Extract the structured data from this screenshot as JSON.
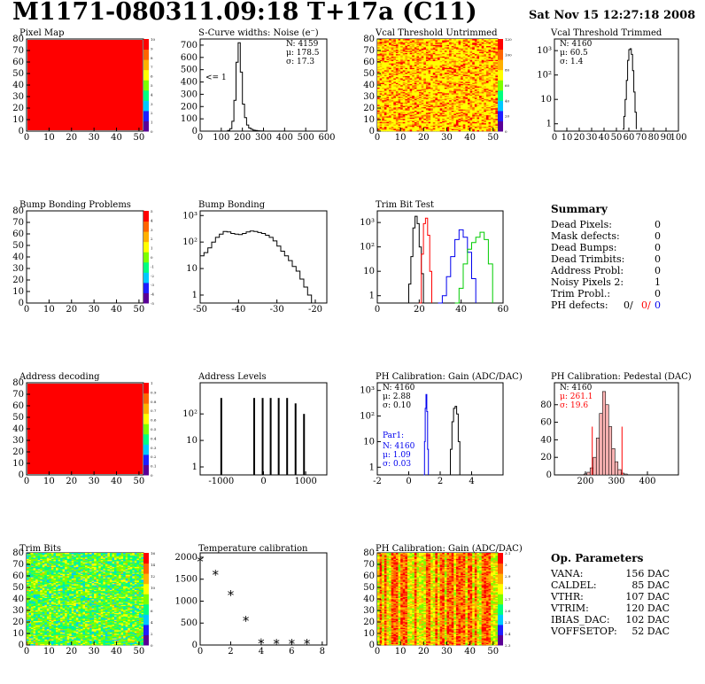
{
  "header": {
    "title": "M1171-080311.09:18 T+17a (C11)",
    "date": "Sat Nov 15 12:27:18 2008"
  },
  "colors": {
    "red": "#ff0000",
    "blue": "#0000ee",
    "green": "#00cc00",
    "black": "#000000"
  },
  "chart_data": [
    {
      "id": "pixel_map",
      "type": "heatmap",
      "title": "Pixel Map",
      "xlim": [
        0,
        52
      ],
      "ylim": [
        0,
        80
      ],
      "xticks": [
        "0",
        "10",
        "20",
        "30",
        "40",
        "50"
      ],
      "yticks": [
        "0",
        "10",
        "20",
        "30",
        "40",
        "50",
        "60",
        "70",
        "80"
      ],
      "fill": "uniform-red",
      "zlim": [
        0,
        10
      ],
      "zticks": [
        "0",
        "1",
        "2",
        "3",
        "4",
        "5",
        "6",
        "7",
        "8",
        "9",
        "10"
      ]
    },
    {
      "id": "scurve",
      "type": "line",
      "title": "S-Curve widths: Noise (e⁻)",
      "xlim": [
        0,
        600
      ],
      "ylim": [
        0,
        750
      ],
      "xticks": [
        "0",
        "100",
        "200",
        "300",
        "400",
        "500",
        "600"
      ],
      "yticks": [
        "0",
        "100",
        "200",
        "300",
        "400",
        "500",
        "600",
        "700"
      ],
      "stats": [
        "N: 4159",
        "μ: 178.5",
        "σ: 17.3"
      ],
      "annotation": "<= 1",
      "x": [
        120,
        130,
        140,
        150,
        160,
        170,
        180,
        190,
        200,
        210,
        220,
        230,
        240,
        250,
        260,
        270,
        280,
        290,
        300
      ],
      "y": [
        0,
        5,
        20,
        80,
        250,
        560,
        720,
        480,
        220,
        110,
        50,
        25,
        15,
        8,
        5,
        3,
        2,
        1,
        0
      ]
    },
    {
      "id": "vcal_untrimmed",
      "type": "heatmap",
      "title": "Vcal Threshold Untrimmed",
      "xlim": [
        0,
        52
      ],
      "ylim": [
        0,
        80
      ],
      "xticks": [
        "0",
        "10",
        "20",
        "30",
        "40",
        "50"
      ],
      "yticks": [
        "0",
        "10",
        "20",
        "30",
        "40",
        "50",
        "60",
        "70",
        "80"
      ],
      "fill": "noise-orange",
      "zlim": [
        0,
        120
      ],
      "zticks": [
        "0",
        "20",
        "40",
        "60",
        "80",
        "100",
        "120"
      ]
    },
    {
      "id": "vcal_trimmed",
      "type": "line",
      "log": true,
      "title": "Vcal Threshold Trimmed",
      "xlim": [
        0,
        100
      ],
      "ylim": [
        0.5,
        3000
      ],
      "xticks": [
        "0",
        "10",
        "20",
        "30",
        "40",
        "50",
        "60",
        "70",
        "80",
        "90",
        "100"
      ],
      "yticks": [
        "1",
        "10",
        "10²",
        "10³"
      ],
      "stats": [
        "N: 4160",
        "μ: 60.5",
        "σ:  1.4"
      ],
      "x": [
        55,
        56,
        57,
        58,
        59,
        60,
        61,
        62,
        63,
        64,
        65,
        66
      ],
      "y": [
        0.6,
        2,
        10,
        60,
        400,
        1100,
        1200,
        700,
        150,
        20,
        3,
        0.6
      ]
    },
    {
      "id": "bump_problems",
      "type": "heatmap",
      "title": "Bump Bonding Problems",
      "xlim": [
        0,
        52
      ],
      "ylim": [
        0,
        80
      ],
      "xticks": [
        "0",
        "10",
        "20",
        "30",
        "40",
        "50"
      ],
      "yticks": [
        "0",
        "10",
        "20",
        "30",
        "40",
        "50",
        "60",
        "70",
        "80"
      ],
      "fill": "empty",
      "zlim": [
        -5,
        5
      ],
      "zticks": [
        "-5",
        "-4",
        "-3",
        "-2",
        "-1",
        "0",
        "1",
        "2",
        "3",
        "4",
        "5"
      ]
    },
    {
      "id": "bump_bonding",
      "type": "line",
      "log": true,
      "title": "Bump Bonding",
      "xlim": [
        -50,
        -17
      ],
      "ylim": [
        0.5,
        1500
      ],
      "xticks": [
        "-50",
        "-40",
        "-30",
        "-20"
      ],
      "yticks": [
        "1",
        "10",
        "10²",
        "10³"
      ],
      "x": [
        -50,
        -49,
        -48,
        -47,
        -46,
        -45,
        -44,
        -43,
        -42,
        -41,
        -40,
        -39,
        -38,
        -37,
        -36,
        -35,
        -34,
        -33,
        -32,
        -31,
        -30,
        -29,
        -28,
        -27,
        -26,
        -25,
        -24,
        -23,
        -22,
        -21,
        -20
      ],
      "y": [
        30,
        40,
        60,
        100,
        150,
        200,
        250,
        240,
        210,
        200,
        190,
        210,
        240,
        260,
        250,
        230,
        210,
        180,
        150,
        110,
        70,
        45,
        30,
        20,
        12,
        8,
        4,
        2,
        1,
        0.5,
        0.5
      ]
    },
    {
      "id": "trim_bit_test",
      "type": "line",
      "log": true,
      "title": "Trim Bit Test",
      "xlim": [
        0,
        60
      ],
      "ylim": [
        0.5,
        3000
      ],
      "xticks": [
        "0",
        "20",
        "40",
        "60"
      ],
      "yticks": [
        "1",
        "10",
        "10²",
        "10³"
      ],
      "series": [
        {
          "color": "#000000",
          "x": [
            14,
            15,
            16,
            17,
            18,
            19,
            20,
            21,
            22
          ],
          "y": [
            0.5,
            3,
            40,
            600,
            1800,
            900,
            100,
            8,
            0.5
          ]
        },
        {
          "color": "#ff0000",
          "x": [
            20,
            21,
            22,
            23,
            24,
            25,
            26
          ],
          "y": [
            0.5,
            50,
            900,
            1500,
            300,
            10,
            0.5
          ]
        },
        {
          "color": "#0000ee",
          "x": [
            29,
            31,
            33,
            35,
            37,
            39,
            41,
            43,
            45,
            47
          ],
          "y": [
            0.5,
            1,
            6,
            40,
            200,
            500,
            250,
            60,
            5,
            0.5
          ]
        },
        {
          "color": "#00cc00",
          "x": [
            37,
            39,
            41,
            43,
            45,
            47,
            49,
            51,
            53,
            55
          ],
          "y": [
            0.5,
            2,
            20,
            80,
            150,
            250,
            400,
            200,
            20,
            0.5
          ]
        }
      ]
    },
    {
      "id": "address_decoding",
      "type": "heatmap",
      "title": "Address decoding",
      "xlim": [
        0,
        52
      ],
      "ylim": [
        0,
        80
      ],
      "xticks": [
        "0",
        "10",
        "20",
        "30",
        "40",
        "50"
      ],
      "yticks": [
        "0",
        "10",
        "20",
        "30",
        "40",
        "50",
        "60",
        "70",
        "80"
      ],
      "fill": "uniform-red",
      "zlim": [
        0,
        1
      ],
      "zticks": [
        "0",
        "0.1",
        "0.2",
        "0.3",
        "0.4",
        "0.5",
        "0.6",
        "0.7",
        "0.8",
        "0.9",
        "1"
      ]
    },
    {
      "id": "address_levels",
      "type": "bar",
      "log": true,
      "title": "Address Levels",
      "xlim": [
        -1500,
        1500
      ],
      "ylim": [
        0.5,
        1500
      ],
      "xticks": [
        "-1000",
        "0",
        "1000"
      ],
      "yticks": [
        "1",
        "10",
        "10²"
      ],
      "x": [
        -1000,
        -220,
        -20,
        170,
        360,
        560,
        760,
        960
      ],
      "y": [
        400,
        400,
        400,
        400,
        400,
        400,
        250,
        100
      ]
    },
    {
      "id": "ph_gain",
      "type": "line",
      "log": true,
      "title": "PH Calibration: Gain (ADC/DAC)",
      "xlim": [
        -2,
        6
      ],
      "ylim": [
        0.5,
        2000
      ],
      "xticks": [
        "-2",
        "0",
        "2",
        "4"
      ],
      "yticks": [
        "1",
        "10",
        "10²",
        "10³"
      ],
      "stats": [
        "N: 4160",
        "μ: 2.88",
        "σ: 0.10"
      ],
      "par_label": "Par1:",
      "par_stats": [
        "N: 4160",
        "μ: 1.09",
        "σ: 0.03"
      ],
      "series": [
        {
          "color": "#0000ee",
          "x": [
            0.95,
            1.0,
            1.05,
            1.1,
            1.15,
            1.2,
            1.25
          ],
          "y": [
            0.5,
            10,
            200,
            700,
            150,
            5,
            0.5
          ]
        },
        {
          "color": "#000000",
          "x": [
            2.55,
            2.65,
            2.75,
            2.85,
            2.95,
            3.05,
            3.15,
            3.25
          ],
          "y": [
            0.5,
            5,
            60,
            200,
            240,
            120,
            10,
            0.5
          ]
        }
      ]
    },
    {
      "id": "ph_pedestal",
      "type": "bar",
      "title": "PH Calibration: Pedestal (DAC)",
      "xlim": [
        100,
        500
      ],
      "ylim": [
        0,
        105
      ],
      "xticks": [
        "200",
        "300",
        "400"
      ],
      "yticks": [
        "0",
        "20",
        "40",
        "60",
        "80"
      ],
      "stats": [
        "N: 4160",
        "μ: 261.1",
        "σ: 19.6"
      ],
      "cut_lines": [
        222,
        318
      ],
      "x": [
        200,
        210,
        220,
        230,
        240,
        250,
        260,
        270,
        280,
        290,
        300,
        310,
        320,
        330,
        340
      ],
      "y": [
        1,
        3,
        8,
        20,
        42,
        70,
        95,
        80,
        55,
        30,
        15,
        6,
        2,
        1,
        0
      ]
    },
    {
      "id": "trim_bits",
      "type": "heatmap",
      "title": "Trim Bits",
      "xlim": [
        0,
        52
      ],
      "ylim": [
        0,
        80
      ],
      "xticks": [
        "0",
        "10",
        "20",
        "30",
        "40",
        "50"
      ],
      "yticks": [
        "0",
        "10",
        "20",
        "30",
        "40",
        "50",
        "60",
        "70",
        "80"
      ],
      "fill": "noise-green",
      "zlim": [
        0,
        16
      ],
      "zticks": [
        "0",
        "2",
        "4",
        "6",
        "8",
        "10",
        "12",
        "14",
        "16"
      ]
    },
    {
      "id": "temperature",
      "type": "scatter",
      "title": "Temperature calibration",
      "xlim": [
        0,
        8.3
      ],
      "ylim": [
        0,
        2100
      ],
      "xticks": [
        "0",
        "2",
        "4",
        "6",
        "8"
      ],
      "yticks": [
        "0",
        "500",
        "1000",
        "1500",
        "2000"
      ],
      "x": [
        0,
        1,
        2,
        3,
        4,
        5,
        6,
        7
      ],
      "y": [
        1900,
        1600,
        1130,
        550,
        30,
        20,
        20,
        20
      ]
    },
    {
      "id": "ph_gain_map",
      "type": "heatmap",
      "title": "PH Calibration: Gain (ADC/DAC)",
      "xlim": [
        0,
        52
      ],
      "ylim": [
        0,
        80
      ],
      "xticks": [
        "0",
        "10",
        "20",
        "30",
        "40",
        "50"
      ],
      "yticks": [
        "0",
        "10",
        "20",
        "30",
        "40",
        "50",
        "60",
        "70",
        "80"
      ],
      "fill": "noise-redmix",
      "zlim": [
        2.3,
        3.1
      ],
      "zticks": [
        "2.3",
        "2.4",
        "2.5",
        "2.6",
        "2.7",
        "2.8",
        "2.9",
        "3",
        "3.1"
      ]
    }
  ],
  "summary": {
    "title": "Summary",
    "rows": [
      {
        "k": "Dead Pixels:",
        "v": "0"
      },
      {
        "k": "Mask defects:",
        "v": "0"
      },
      {
        "k": "Dead Bumps:",
        "v": "0"
      },
      {
        "k": "Dead Trimbits:",
        "v": "0"
      },
      {
        "k": "Address Probl:",
        "v": "0"
      },
      {
        "k": "Noisy Pixels 2:",
        "v": "1"
      },
      {
        "k": "Trim Probl.:",
        "v": "0"
      }
    ],
    "ph_label": "PH defects:",
    "ph_values": [
      "0/",
      "0/",
      "0"
    ]
  },
  "op_params": {
    "title": "Op. Parameters",
    "rows": [
      {
        "k": "VANA:",
        "v": "156 DAC"
      },
      {
        "k": "CALDEL:",
        "v": "85 DAC"
      },
      {
        "k": "VTHR:",
        "v": "107 DAC"
      },
      {
        "k": "VTRIM:",
        "v": "120 DAC"
      },
      {
        "k": "IBIAS_DAC:",
        "v": "102 DAC"
      },
      {
        "k": "VOFFSETOP:",
        "v": "52 DAC"
      }
    ]
  }
}
